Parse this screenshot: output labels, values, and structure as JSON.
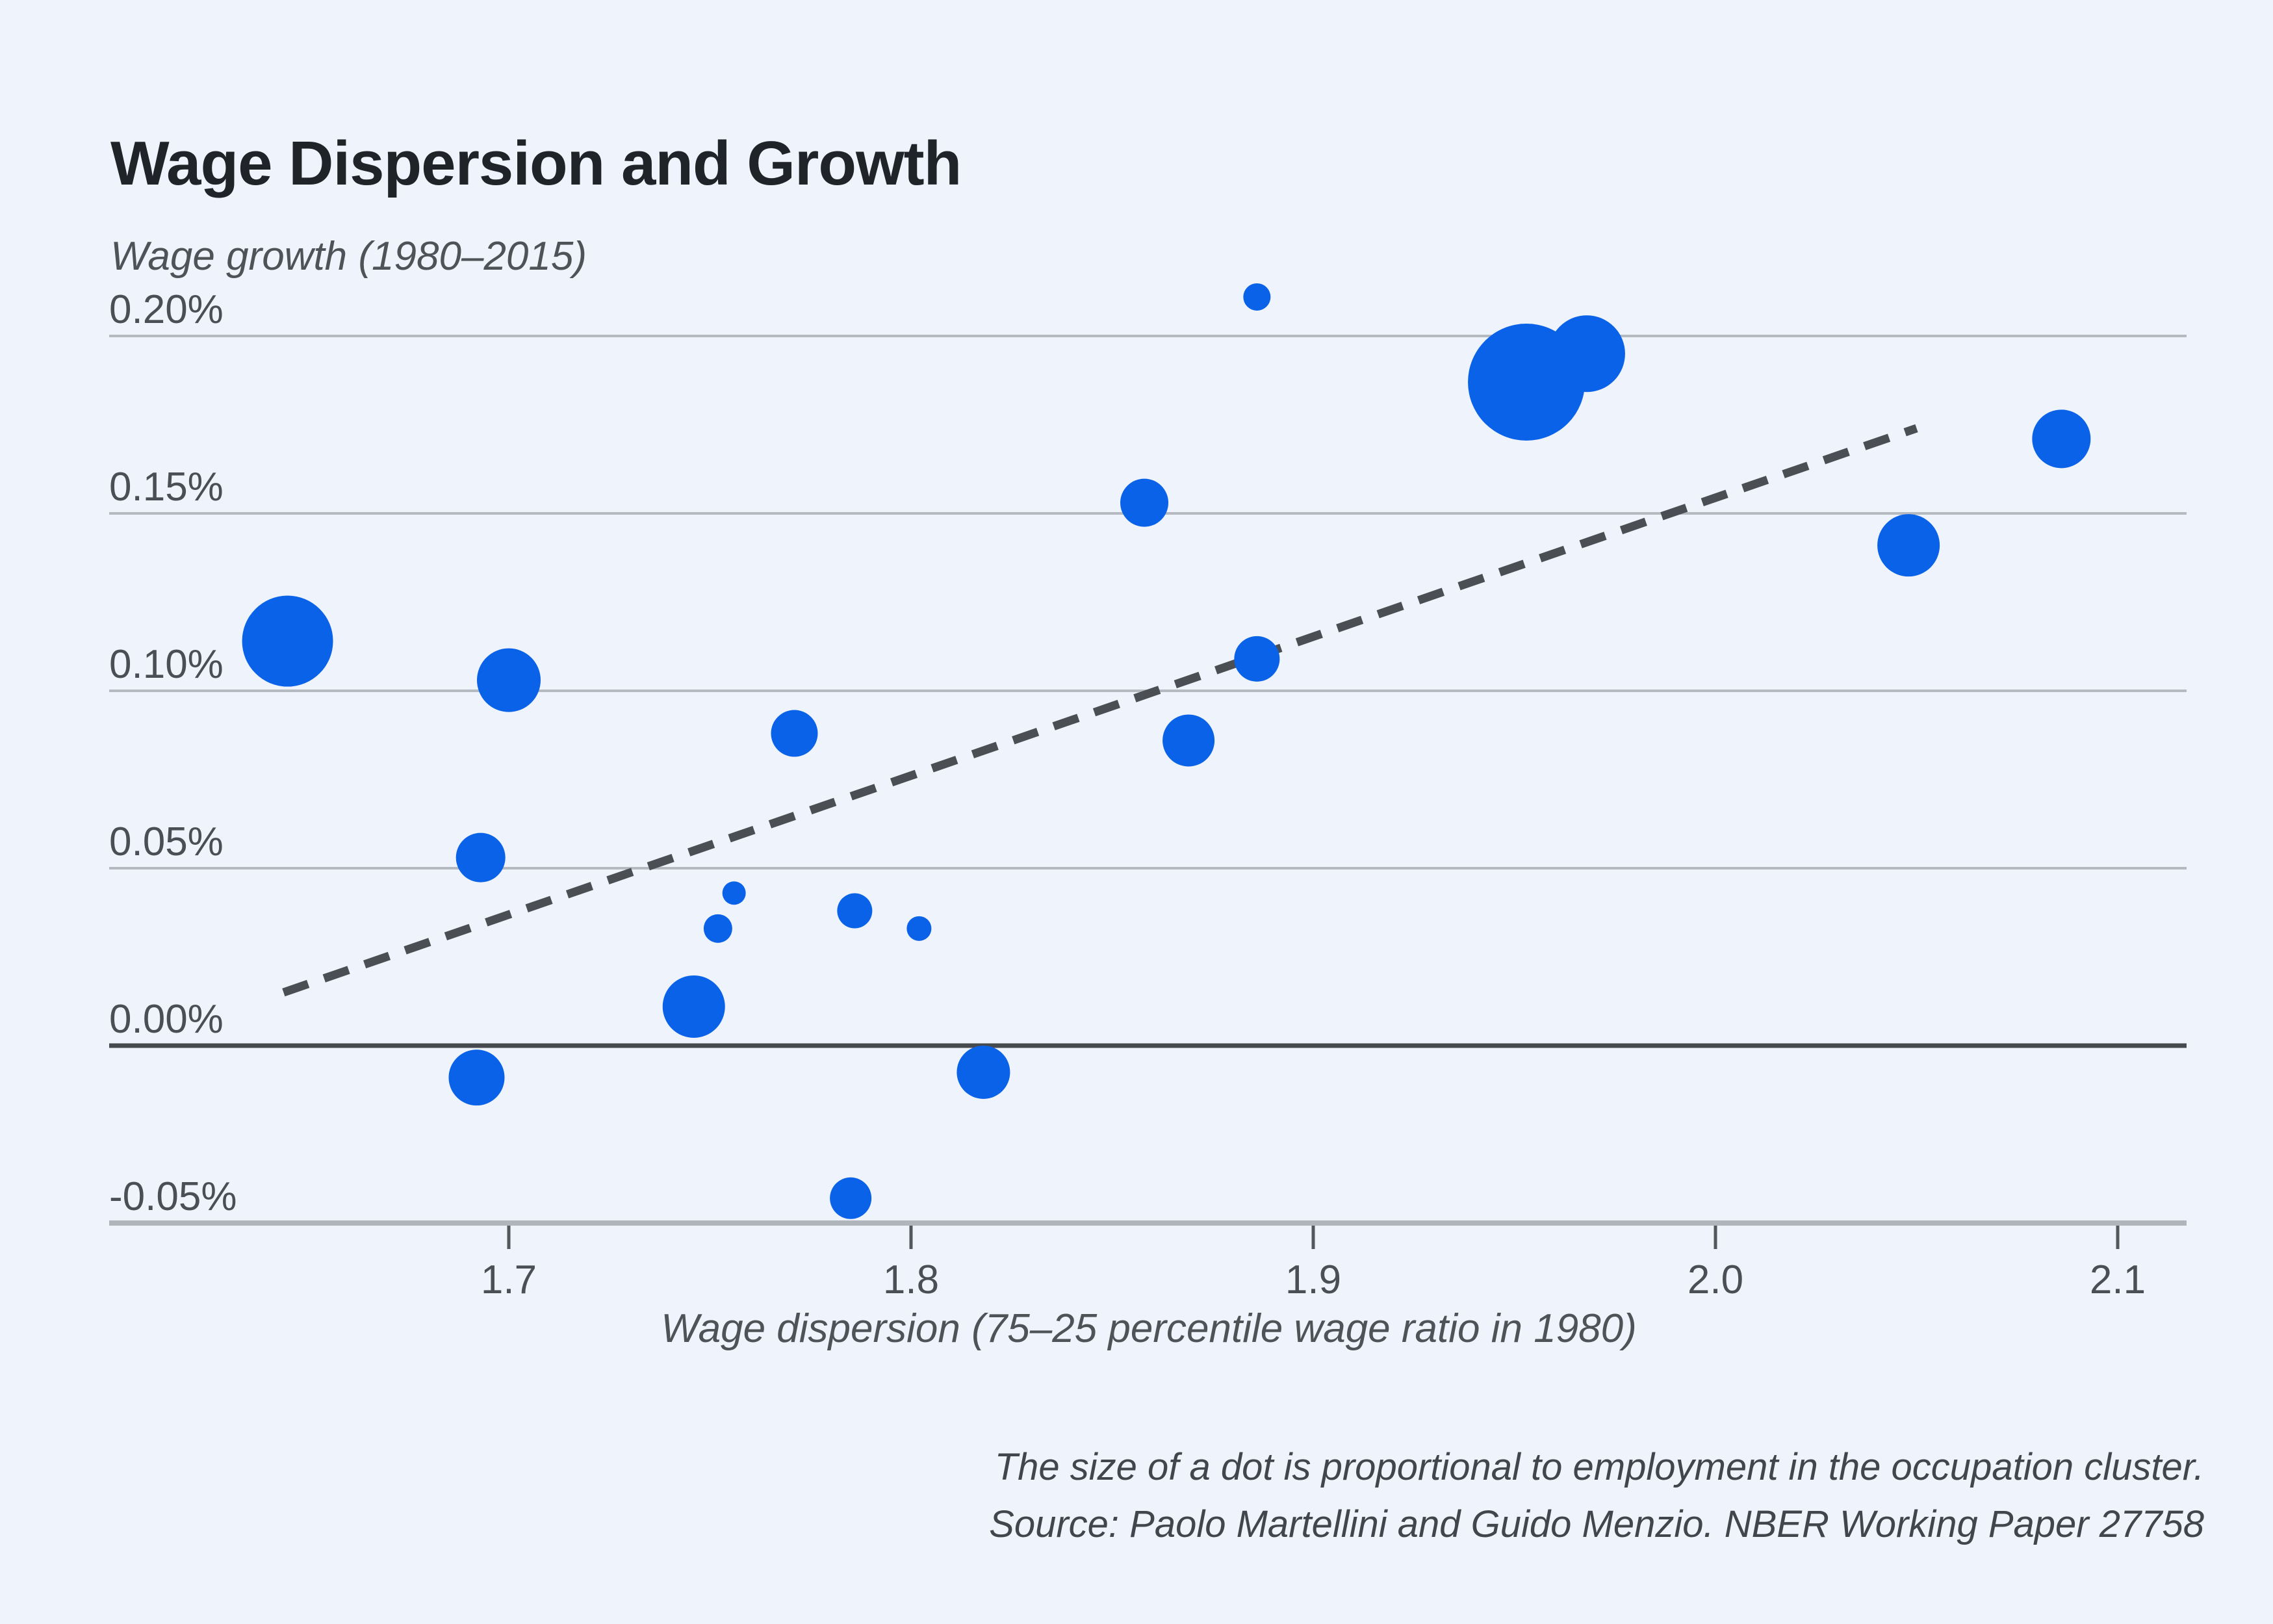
{
  "header": {
    "title": "Wage Dispersion and Growth"
  },
  "chart": {
    "y_axis_title": "Wage growth (1980–2015)",
    "x_axis_title": "Wage dispersion (75–25 percentile wage ratio in 1980)",
    "colors": {
      "background": "#eff3fb",
      "bubble": "#0a62e8",
      "gridline": "#b5b9c0",
      "zero_line": "#46494d",
      "axis_line": "#b0b4bb",
      "tick_mark": "#54585c",
      "tick_text": "#4a4f55",
      "trend": "#4b4f54"
    }
  },
  "chart_data": {
    "type": "scatter",
    "title": "Wage Dispersion and Growth",
    "xlabel": "Wage dispersion (75–25 percentile wage ratio in 1980)",
    "ylabel": "Wage growth (1980–2015)",
    "xlim": [
      1.601,
      2.118
    ],
    "ylim": [
      -0.057,
      0.225
    ],
    "grid": "horizontal-only",
    "legend": "none",
    "y_unit": "percent",
    "x_ticks": [
      {
        "label": "1.7",
        "value": 1.7
      },
      {
        "label": "1.8",
        "value": 1.8
      },
      {
        "label": "1.9",
        "value": 1.9
      },
      {
        "label": "2.0",
        "value": 2.0
      },
      {
        "label": "2.1",
        "value": 2.1
      }
    ],
    "y_ticks": [
      {
        "label": "0.20%",
        "value": 0.2
      },
      {
        "label": "0.15%",
        "value": 0.15
      },
      {
        "label": "0.10%",
        "value": 0.1
      },
      {
        "label": "0.05%",
        "value": 0.05
      },
      {
        "label": "0.00%",
        "value": 0.0
      },
      {
        "label": "-0.05%",
        "value": -0.05
      }
    ],
    "size_note": "The size of a dot is proportional to employment in the occupation cluster.",
    "points": [
      {
        "x": 1.645,
        "y": 0.114,
        "size": 70
      },
      {
        "x": 1.7,
        "y": 0.103,
        "size": 49
      },
      {
        "x": 1.693,
        "y": 0.053,
        "size": 38
      },
      {
        "x": 1.692,
        "y": -0.009,
        "size": 43
      },
      {
        "x": 1.746,
        "y": 0.011,
        "size": 48
      },
      {
        "x": 1.752,
        "y": 0.033,
        "size": 22
      },
      {
        "x": 1.756,
        "y": 0.043,
        "size": 18
      },
      {
        "x": 1.771,
        "y": 0.088,
        "size": 36
      },
      {
        "x": 1.785,
        "y": -0.043,
        "size": 32
      },
      {
        "x": 1.786,
        "y": 0.038,
        "size": 27
      },
      {
        "x": 1.802,
        "y": 0.033,
        "size": 19
      },
      {
        "x": 1.818,
        "y": -0.0075,
        "size": 41
      },
      {
        "x": 1.858,
        "y": 0.153,
        "size": 37
      },
      {
        "x": 1.869,
        "y": 0.086,
        "size": 40
      },
      {
        "x": 1.886,
        "y": 0.211,
        "size": 21
      },
      {
        "x": 1.886,
        "y": 0.109,
        "size": 35
      },
      {
        "x": 1.953,
        "y": 0.187,
        "size": 90
      },
      {
        "x": 1.968,
        "y": 0.195,
        "size": 59
      },
      {
        "x": 2.048,
        "y": 0.141,
        "size": 48
      },
      {
        "x": 2.086,
        "y": 0.171,
        "size": 45
      }
    ],
    "trend_line": {
      "style": "dashed",
      "x1": 1.644,
      "y1": 0.015,
      "x2": 2.05,
      "y2": 0.174
    }
  },
  "footer": {
    "line1": "The size of a dot is proportional to employment in the occupation cluster.",
    "line2": "Source: Paolo Martellini and Guido Menzio. NBER Working Paper 27758"
  }
}
